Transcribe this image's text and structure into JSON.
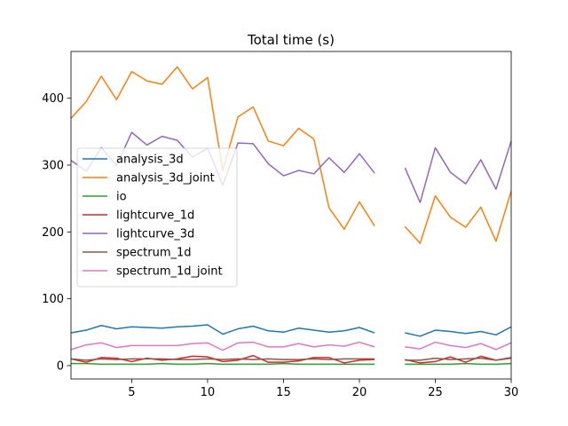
{
  "chart_data": {
    "type": "line",
    "title": "Total time (s)",
    "xlabel": "",
    "ylabel": "",
    "xlim": [
      1,
      30
    ],
    "ylim": [
      -20,
      470
    ],
    "xticks": [
      5,
      10,
      15,
      20,
      25,
      30
    ],
    "yticks": [
      0,
      100,
      200,
      300,
      400
    ],
    "grid": false,
    "legend_position": "center-left",
    "x": [
      1,
      2,
      3,
      4,
      5,
      6,
      7,
      8,
      9,
      10,
      11,
      12,
      13,
      14,
      15,
      16,
      17,
      18,
      19,
      20,
      21,
      22,
      23,
      24,
      25,
      26,
      27,
      28,
      29,
      30
    ],
    "series": [
      {
        "name": "analysis_3d",
        "color": "#1f77b4",
        "values": [
          49,
          53,
          60,
          55,
          58,
          57,
          56,
          58,
          59,
          61,
          47,
          55,
          59,
          52,
          50,
          56,
          53,
          50,
          52,
          57,
          49,
          null,
          49,
          44,
          53,
          51,
          48,
          51,
          46,
          58
        ]
      },
      {
        "name": "analysis_3d_joint",
        "color": "#ff7f0e",
        "values": [
          370,
          395,
          433,
          398,
          440,
          426,
          421,
          447,
          414,
          431,
          292,
          372,
          387,
          336,
          329,
          355,
          339,
          236,
          204,
          245,
          209,
          null,
          208,
          183,
          254,
          222,
          207,
          237,
          186,
          261
        ]
      },
      {
        "name": "io",
        "color": "#2ca02c",
        "values": [
          3,
          3,
          2,
          2,
          2,
          2,
          3,
          2,
          2,
          3,
          2,
          2,
          2,
          2,
          3,
          2,
          2,
          2,
          2,
          2,
          2,
          null,
          2,
          2,
          2,
          2,
          3,
          2,
          2,
          3
        ]
      },
      {
        "name": "lightcurve_1d",
        "color": "#d62728",
        "values": [
          10,
          5,
          12,
          11,
          6,
          11,
          8,
          10,
          14,
          13,
          6,
          8,
          15,
          5,
          5,
          7,
          12,
          12,
          4,
          8,
          9,
          null,
          9,
          4,
          6,
          13,
          5,
          14,
          8,
          12
        ]
      },
      {
        "name": "lightcurve_3d",
        "color": "#9467bd",
        "values": [
          307,
          291,
          326,
          299,
          349,
          330,
          343,
          337,
          312,
          325,
          270,
          333,
          332,
          302,
          284,
          292,
          287,
          311,
          289,
          317,
          288,
          null,
          296,
          244,
          326,
          289,
          272,
          308,
          264,
          336
        ]
      },
      {
        "name": "spectrum_1d",
        "color": "#8c564b",
        "values": [
          10,
          8,
          10,
          9,
          10,
          10,
          10,
          9,
          9,
          10,
          9,
          10,
          9,
          10,
          9,
          9,
          10,
          9,
          10,
          10,
          10,
          null,
          8,
          8,
          11,
          9,
          10,
          11,
          8,
          11
        ]
      },
      {
        "name": "spectrum_1d_joint",
        "color": "#e377c2",
        "values": [
          24,
          31,
          34,
          27,
          30,
          30,
          30,
          30,
          33,
          34,
          23,
          34,
          35,
          28,
          28,
          33,
          28,
          31,
          29,
          35,
          28,
          null,
          28,
          25,
          35,
          30,
          27,
          33,
          24,
          34
        ]
      }
    ]
  }
}
